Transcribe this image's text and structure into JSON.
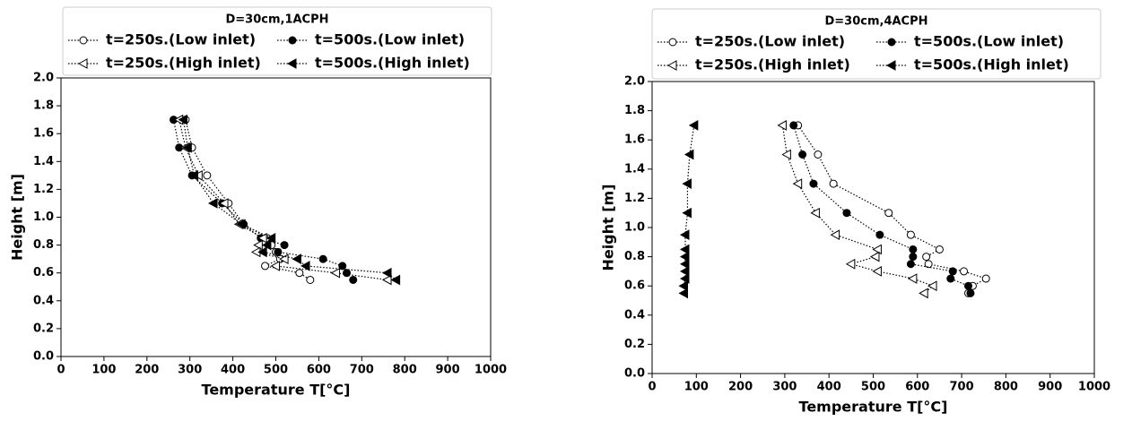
{
  "chart_data": [
    {
      "type": "line",
      "legend_title": "D=30cm,1ACPH",
      "xlabel": "Temperature T[°C]",
      "ylabel": "Height [m]",
      "xlim": [
        0,
        1000
      ],
      "ylim": [
        0,
        2.0
      ],
      "xticks": [
        0,
        100,
        200,
        300,
        400,
        500,
        600,
        700,
        800,
        900,
        1000
      ],
      "yticks": [
        {
          "value": 0,
          "label": "0.0"
        },
        0.2,
        0.4,
        0.6,
        0.8,
        {
          "value": 1,
          "label": "1.0"
        },
        1.2,
        1.4,
        1.6,
        1.8,
        {
          "value": 2,
          "label": "2.0"
        }
      ],
      "series": [
        {
          "name": "t=250s.(Low inlet)",
          "color": "#000000",
          "marker": "circle",
          "filled": false,
          "x": [
            290,
            305,
            340,
            390,
            425,
            480,
            490,
            500,
            510,
            475,
            555,
            580
          ],
          "values": [
            1.7,
            1.5,
            1.3,
            1.1,
            0.95,
            0.85,
            0.8,
            0.75,
            0.7,
            0.65,
            0.6,
            0.55
          ]
        },
        {
          "name": "t=500s.(Low inlet)",
          "color": "#000000",
          "marker": "circle",
          "filled": true,
          "x": [
            262,
            275,
            305,
            375,
            425,
            465,
            520,
            505,
            610,
            655,
            665,
            680
          ],
          "values": [
            1.7,
            1.5,
            1.3,
            1.1,
            0.95,
            0.85,
            0.8,
            0.75,
            0.7,
            0.65,
            0.6,
            0.55
          ]
        },
        {
          "name": "t=250s.(High inlet)",
          "color": "#000000",
          "marker": "triangle-left",
          "filled": false,
          "x": [
            275,
            290,
            320,
            380,
            415,
            470,
            460,
            455,
            520,
            500,
            640,
            760
          ],
          "values": [
            1.7,
            1.5,
            1.3,
            1.1,
            0.95,
            0.85,
            0.8,
            0.75,
            0.7,
            0.65,
            0.6,
            0.55
          ]
        },
        {
          "name": "t=500s.(High inlet)",
          "color": "#000000",
          "marker": "triangle-left",
          "filled": true,
          "x": [
            285,
            295,
            310,
            355,
            420,
            490,
            480,
            470,
            550,
            570,
            760,
            780
          ],
          "values": [
            1.7,
            1.5,
            1.3,
            1.1,
            0.95,
            0.85,
            0.8,
            0.75,
            0.7,
            0.65,
            0.6,
            0.55
          ]
        }
      ]
    },
    {
      "type": "line",
      "legend_title": "D=30cm,4ACPH",
      "xlabel": "Temperature T[°C]",
      "ylabel": "Height [m]",
      "xlim": [
        0,
        1000
      ],
      "ylim": [
        0,
        2.0
      ],
      "xticks": [
        0,
        100,
        200,
        300,
        400,
        500,
        600,
        700,
        800,
        900,
        1000
      ],
      "yticks": [
        {
          "value": 0,
          "label": "0.0"
        },
        0.2,
        0.4,
        0.6,
        0.8,
        {
          "value": 1,
          "label": "1.0"
        },
        1.2,
        1.4,
        1.6,
        1.8,
        {
          "value": 2,
          "label": "2.0"
        }
      ],
      "series": [
        {
          "name": "t=250s.(Low inlet)",
          "color": "#000000",
          "marker": "circle",
          "filled": false,
          "x": [
            330,
            375,
            410,
            535,
            585,
            650,
            620,
            625,
            705,
            755,
            725,
            715
          ],
          "values": [
            1.7,
            1.5,
            1.3,
            1.1,
            0.95,
            0.85,
            0.8,
            0.75,
            0.7,
            0.65,
            0.6,
            0.55
          ]
        },
        {
          "name": "t=500s.(Low inlet)",
          "color": "#000000",
          "marker": "circle",
          "filled": true,
          "x": [
            320,
            340,
            365,
            440,
            515,
            590,
            590,
            585,
            680,
            675,
            715,
            720
          ],
          "values": [
            1.7,
            1.5,
            1.3,
            1.1,
            0.95,
            0.85,
            0.8,
            0.75,
            0.7,
            0.65,
            0.6,
            0.55
          ]
        },
        {
          "name": "t=250s.(High inlet)",
          "color": "#000000",
          "marker": "triangle-left",
          "filled": false,
          "x": [
            295,
            305,
            330,
            370,
            415,
            510,
            505,
            450,
            510,
            590,
            635,
            615
          ],
          "values": [
            1.7,
            1.5,
            1.3,
            1.1,
            0.95,
            0.85,
            0.8,
            0.75,
            0.7,
            0.65,
            0.6,
            0.55
          ]
        },
        {
          "name": "t=500s.(High inlet)",
          "color": "#000000",
          "marker": "triangle-left",
          "filled": true,
          "x": [
            95,
            85,
            80,
            80,
            75,
            75,
            75,
            75,
            75,
            75,
            72,
            72
          ],
          "values": [
            1.7,
            1.5,
            1.3,
            1.1,
            0.95,
            0.85,
            0.8,
            0.75,
            0.7,
            0.65,
            0.6,
            0.55
          ]
        }
      ]
    }
  ]
}
